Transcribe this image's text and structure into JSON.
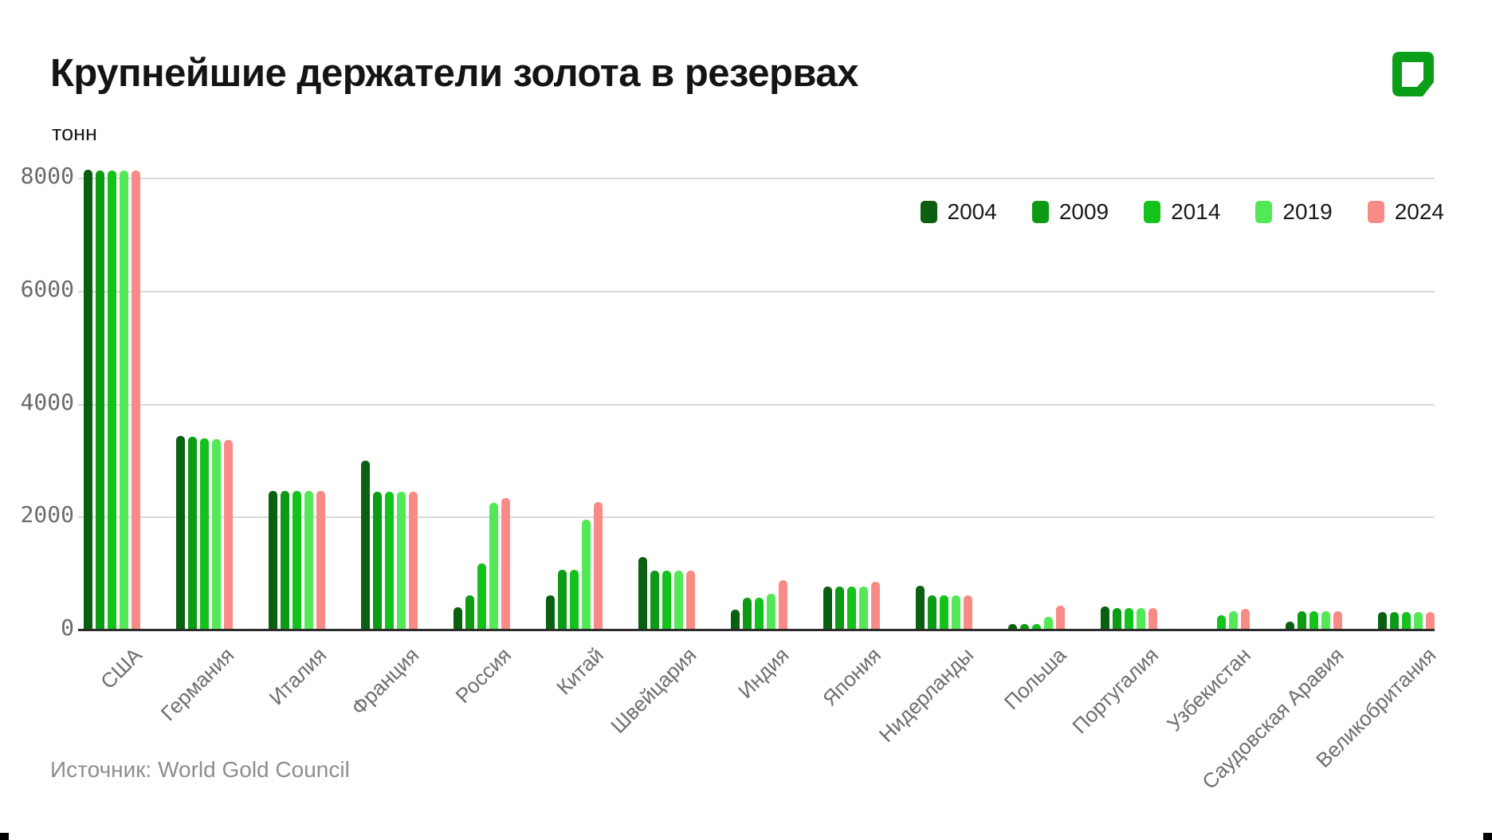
{
  "page": {
    "background": "#ffffff"
  },
  "header": {
    "title": "Крупнейшие держатели золота в резервах",
    "unit_label": "тонн",
    "logo_color": "#0c9e19"
  },
  "source_note": "Источник: World Gold Council",
  "chart_data": {
    "type": "bar",
    "title": "Крупнейшие держатели золота в резервах",
    "ylabel": "тонн",
    "xlabel": "",
    "ylim": [
      0,
      8400
    ],
    "yticks": [
      0,
      2000,
      4000,
      6000,
      8000
    ],
    "grid": true,
    "legend_position": "top-right",
    "axis_colors": {
      "gridline": "#d9d9d9",
      "axis_line": "#2b2b2b",
      "tick_text": "#6a6a6a",
      "category_text": "#6e6e6e"
    },
    "categories": [
      "США",
      "Германия",
      "Италия",
      "Франция",
      "Россия",
      "Китай",
      "Швейцария",
      "Индия",
      "Япония",
      "Нидерланды",
      "Польша",
      "Португалия",
      "Узбекистан",
      "Саудовская Аравия",
      "Великобритания"
    ],
    "series": [
      {
        "name": "2004",
        "color": "#0a5f10",
        "values": [
          8136,
          3433,
          2452,
          2985,
          390,
          600,
          1290,
          358,
          765,
          778,
          103,
          407,
          0,
          143,
          311
        ]
      },
      {
        "name": "2009",
        "color": "#0d9b15",
        "values": [
          8134,
          3408,
          2452,
          2435,
          610,
          1054,
          1040,
          558,
          765,
          612,
          103,
          383,
          0,
          323,
          310
        ]
      },
      {
        "name": "2014",
        "color": "#14c21c",
        "values": [
          8134,
          3384,
          2452,
          2435,
          1170,
          1054,
          1040,
          558,
          765,
          612,
          103,
          383,
          250,
          323,
          310
        ]
      },
      {
        "name": "2019",
        "color": "#52e856",
        "values": [
          8134,
          3366,
          2452,
          2436,
          2240,
          1948,
          1040,
          635,
          765,
          612,
          229,
          383,
          320,
          323,
          310
        ]
      },
      {
        "name": "2024",
        "color": "#f98b86",
        "values": [
          8133,
          3352,
          2452,
          2437,
          2333,
          2264,
          1040,
          876,
          846,
          612,
          420,
          383,
          372,
          323,
          310
        ]
      }
    ]
  }
}
